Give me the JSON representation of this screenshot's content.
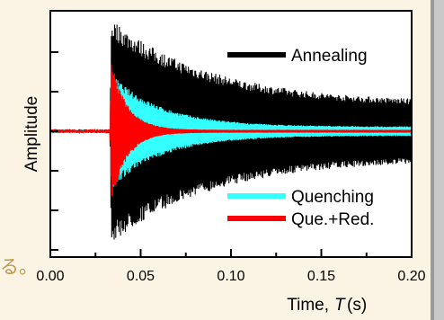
{
  "margin_text": "る。",
  "chart_data": {
    "type": "line",
    "xlabel": "Time,",
    "xlabel_var": "T",
    "xlabel_unit": "(s)",
    "ylabel": "Amplitude",
    "xlim": [
      0.0,
      0.2
    ],
    "ylim": [
      -1.0,
      1.0
    ],
    "x_ticks": [
      "0.00",
      "0.05",
      "0.10",
      "0.15",
      "0.20"
    ],
    "y_ticks_labeled": false,
    "grid": false,
    "legend_placement": "right (split: top-right and bottom-right)",
    "onset_time": 0.033,
    "series": [
      {
        "name": "Annealing",
        "color": "#000000",
        "peak_amplitude": 0.96,
        "envelope_at_end": 0.24,
        "decay_constant_s": 0.055
      },
      {
        "name": "Quenching",
        "color": "#33ffff",
        "peak_amplitude": 0.5,
        "envelope_at_end": 0.04,
        "decay_constant_s": 0.028
      },
      {
        "name": "Que.+Red.",
        "color": "#ff0000",
        "peak_amplitude": 0.65,
        "envelope_at_end": 0.012,
        "decay_constant_s": 0.009
      }
    ]
  }
}
